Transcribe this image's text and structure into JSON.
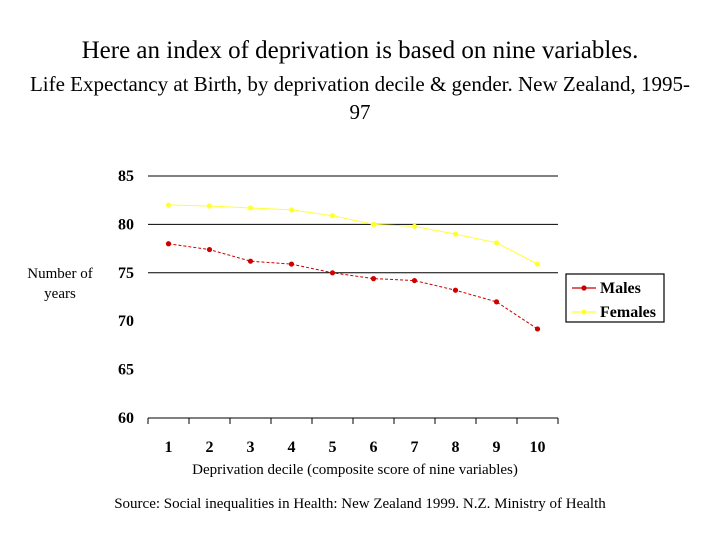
{
  "heading": "Here an index of deprivation is based on nine variables.",
  "subheading": "Life Expectancy at Birth, by deprivation decile & gender.  New Zealand, 1995-97",
  "source": "Source: Social inequalities in Health: New Zealand 1999.  N.Z. Ministry of Health",
  "colors": {
    "males": "#cc0000",
    "females": "#ffff33",
    "grid": "#000000"
  },
  "chart_data": {
    "type": "line",
    "title": "Life Expectancy at Birth, by deprivation decile & gender.  New Zealand, 1995-97",
    "xlabel": "Deprivation decile (composite score of nine variables)",
    "ylabel": "Number of years",
    "categories": [
      "1",
      "2",
      "3",
      "4",
      "5",
      "6",
      "7",
      "8",
      "9",
      "10"
    ],
    "ylim": [
      60,
      85
    ],
    "yticks": [
      "60",
      "65",
      "70",
      "75",
      "80",
      "85"
    ],
    "grid": "horizontal at 75, 80, 85",
    "legend_position": "right",
    "series": [
      {
        "name": "Males",
        "color": "#cc0000",
        "values": [
          78.0,
          77.4,
          76.2,
          75.9,
          75.0,
          74.4,
          74.2,
          73.2,
          72.0,
          69.2
        ]
      },
      {
        "name": "Females",
        "color": "#ffff33",
        "values": [
          82.0,
          81.9,
          81.7,
          81.5,
          80.9,
          80.0,
          79.8,
          79.0,
          78.1,
          75.9
        ]
      }
    ]
  }
}
